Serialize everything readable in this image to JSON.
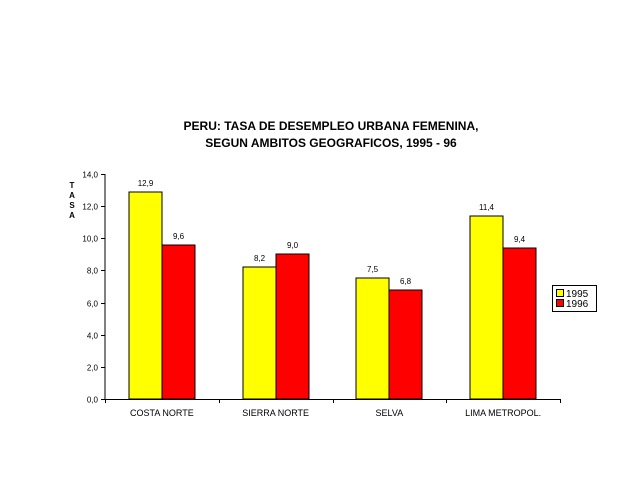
{
  "chart_data": {
    "type": "bar",
    "title": "PERU: TASA DE DESEMPLEO URBANA FEMENINA,",
    "subtitle": "SEGUN AMBITOS GEOGRAFICOS, 1995 - 96",
    "ylabel": "TASA",
    "xlabel": "",
    "categories": [
      "COSTA NORTE",
      "SIERRA NORTE",
      "SELVA",
      "LIMA METROPOL."
    ],
    "series": [
      {
        "name": "1995",
        "values": [
          12.9,
          8.2,
          7.5,
          11.4
        ],
        "labels": [
          "12,9",
          "8,2",
          "7,5",
          "11,4"
        ],
        "color": "#ffff00"
      },
      {
        "name": "1996",
        "values": [
          9.6,
          9.0,
          6.8,
          9.4
        ],
        "labels": [
          "9,6",
          "9,0",
          "6,8",
          "9,4"
        ],
        "color": "#ff0000"
      }
    ],
    "ylim": [
      0,
      14
    ],
    "yticks": [
      "0,0",
      "2,0",
      "4,0",
      "6,0",
      "8,0",
      "10,0",
      "12,0",
      "14,0"
    ],
    "grid": false,
    "legend_position": "right"
  }
}
